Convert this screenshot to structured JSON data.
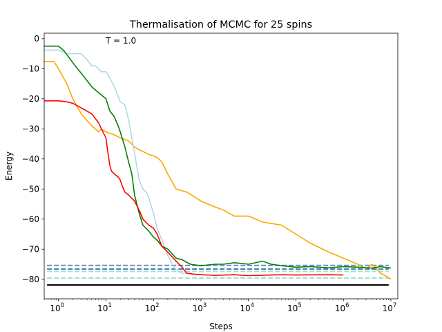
{
  "chart_data": {
    "type": "line",
    "title": "Thermalisation of MCMC for 25 spins",
    "xlabel": "Steps",
    "ylabel": "Energy",
    "annotation": "T = 1.0",
    "xscale": "log",
    "xlim": [
      0.5,
      14000000
    ],
    "ylim": [
      -86.5,
      1.8
    ],
    "x_ticks": [
      {
        "value": 1,
        "label": "10",
        "exp": "0"
      },
      {
        "value": 10,
        "label": "10",
        "exp": "1"
      },
      {
        "value": 100,
        "label": "10",
        "exp": "2"
      },
      {
        "value": 1000,
        "label": "10",
        "exp": "3"
      },
      {
        "value": 10000,
        "label": "10",
        "exp": "4"
      },
      {
        "value": 100000,
        "label": "10",
        "exp": "5"
      },
      {
        "value": 1000000,
        "label": "10",
        "exp": "6"
      },
      {
        "value": 10000000,
        "label": "10",
        "exp": "7"
      }
    ],
    "y_ticks": [
      {
        "value": 0,
        "label": "0"
      },
      {
        "value": -10,
        "label": "−10"
      },
      {
        "value": -20,
        "label": "−20"
      },
      {
        "value": -30,
        "label": "−30"
      },
      {
        "value": -40,
        "label": "−40"
      },
      {
        "value": -50,
        "label": "−50"
      },
      {
        "value": -60,
        "label": "−60"
      },
      {
        "value": -70,
        "label": "−70"
      },
      {
        "value": -80,
        "label": "−80"
      }
    ],
    "series": [
      {
        "name": "orange",
        "color": "#ffa500",
        "points": [
          [
            0.5,
            -7.6
          ],
          [
            0.8,
            -7.6
          ],
          [
            1.0,
            -10
          ],
          [
            1.5,
            -15
          ],
          [
            2,
            -20
          ],
          [
            3,
            -25
          ],
          [
            5,
            -29
          ],
          [
            7,
            -31
          ],
          [
            8,
            -30
          ],
          [
            10,
            -31
          ],
          [
            15,
            -32
          ],
          [
            20,
            -33
          ],
          [
            30,
            -34
          ],
          [
            40,
            -36
          ],
          [
            50,
            -37
          ],
          [
            60,
            -37.5
          ],
          [
            80,
            -38.5
          ],
          [
            100,
            -39
          ],
          [
            120,
            -39.5
          ],
          [
            150,
            -41
          ],
          [
            200,
            -45
          ],
          [
            300,
            -50
          ],
          [
            500,
            -51
          ],
          [
            1000,
            -54
          ],
          [
            2000,
            -56
          ],
          [
            3000,
            -57
          ],
          [
            5000,
            -59
          ],
          [
            10000,
            -59
          ],
          [
            20000,
            -61
          ],
          [
            50000,
            -62
          ],
          [
            100000,
            -65
          ],
          [
            200000,
            -68
          ],
          [
            500000,
            -71
          ],
          [
            1000000,
            -73
          ],
          [
            2000000,
            -75
          ],
          [
            3000000,
            -76.5
          ],
          [
            4000000,
            -75
          ],
          [
            5000000,
            -76.5
          ],
          [
            6000000,
            -78
          ],
          [
            8000000,
            -79
          ],
          [
            10000000,
            -80
          ]
        ]
      },
      {
        "name": "lightblue",
        "color": "#add8e6",
        "points": [
          [
            0.5,
            -3.8
          ],
          [
            1,
            -3.8
          ],
          [
            1.5,
            -5
          ],
          [
            2,
            -5
          ],
          [
            3,
            -5
          ],
          [
            4,
            -7
          ],
          [
            5,
            -9
          ],
          [
            6,
            -9
          ],
          [
            8,
            -11
          ],
          [
            10,
            -11
          ],
          [
            12,
            -13
          ],
          [
            15,
            -16
          ],
          [
            20,
            -21
          ],
          [
            25,
            -22
          ],
          [
            30,
            -27
          ],
          [
            35,
            -33
          ],
          [
            40,
            -38
          ],
          [
            45,
            -43
          ],
          [
            50,
            -47
          ],
          [
            60,
            -50
          ],
          [
            70,
            -51
          ],
          [
            80,
            -53
          ],
          [
            100,
            -58
          ],
          [
            120,
            -63
          ],
          [
            150,
            -67
          ],
          [
            200,
            -72
          ],
          [
            250,
            -75
          ],
          [
            300,
            -77
          ],
          [
            400,
            -78
          ],
          [
            500,
            -78
          ]
        ]
      },
      {
        "name": "green",
        "color": "#008000",
        "points": [
          [
            0.5,
            -2.5
          ],
          [
            1,
            -2.5
          ],
          [
            1.3,
            -4
          ],
          [
            1.8,
            -7
          ],
          [
            2.5,
            -10
          ],
          [
            3,
            -11.5
          ],
          [
            4,
            -14
          ],
          [
            5,
            -16
          ],
          [
            7,
            -18
          ],
          [
            10,
            -20
          ],
          [
            12,
            -24
          ],
          [
            15,
            -26
          ],
          [
            18,
            -29
          ],
          [
            20,
            -31
          ],
          [
            25,
            -36
          ],
          [
            30,
            -41
          ],
          [
            35,
            -45
          ],
          [
            40,
            -52
          ],
          [
            50,
            -58
          ],
          [
            60,
            -62
          ],
          [
            80,
            -64
          ],
          [
            100,
            -66
          ],
          [
            120,
            -67
          ],
          [
            150,
            -69
          ],
          [
            200,
            -70
          ],
          [
            300,
            -73
          ],
          [
            400,
            -73.5
          ],
          [
            600,
            -75
          ],
          [
            1000,
            -75.5
          ],
          [
            2000,
            -75
          ],
          [
            3000,
            -75
          ],
          [
            5000,
            -74.5
          ],
          [
            10000,
            -75
          ],
          [
            20000,
            -74
          ],
          [
            30000,
            -75
          ],
          [
            50000,
            -75.5
          ],
          [
            100000,
            -76
          ],
          [
            200000,
            -75.8
          ],
          [
            500000,
            -76.2
          ],
          [
            1000000,
            -75.8
          ],
          [
            2000000,
            -76
          ],
          [
            4000000,
            -76.3
          ],
          [
            6000000,
            -75.8
          ],
          [
            10000000,
            -76.3
          ]
        ]
      },
      {
        "name": "red",
        "color": "#ff0000",
        "points": [
          [
            0.5,
            -20.7
          ],
          [
            1,
            -20.7
          ],
          [
            1.5,
            -21
          ],
          [
            2,
            -21.5
          ],
          [
            3,
            -23
          ],
          [
            5,
            -25
          ],
          [
            7,
            -28
          ],
          [
            8,
            -30
          ],
          [
            10,
            -33
          ],
          [
            11,
            -38
          ],
          [
            12,
            -42
          ],
          [
            13,
            -44
          ],
          [
            15,
            -45
          ],
          [
            18,
            -46
          ],
          [
            20,
            -47
          ],
          [
            22,
            -49
          ],
          [
            25,
            -51
          ],
          [
            30,
            -52
          ],
          [
            40,
            -54
          ],
          [
            50,
            -57
          ],
          [
            60,
            -60
          ],
          [
            80,
            -62
          ],
          [
            100,
            -63
          ],
          [
            120,
            -65
          ],
          [
            150,
            -69
          ],
          [
            200,
            -71
          ],
          [
            300,
            -74
          ],
          [
            400,
            -76
          ],
          [
            500,
            -78
          ],
          [
            700,
            -78.3
          ],
          [
            1000,
            -78.5
          ],
          [
            2000,
            -78.7
          ],
          [
            5000,
            -78.5
          ],
          [
            10000,
            -78.8
          ],
          [
            50000,
            -78.5
          ],
          [
            100000,
            -78.6
          ],
          [
            500000,
            -78.5
          ],
          [
            1000000,
            -78.6
          ]
        ]
      }
    ],
    "hlines": [
      {
        "value": -75.4,
        "color": "#6f8fc0",
        "style": "dashed"
      },
      {
        "value": -76.6,
        "color": "#4a7db5",
        "style": "dashed"
      },
      {
        "value": -77.4,
        "color": "#9ee2d0",
        "style": "dashed"
      },
      {
        "value": -79.6,
        "color": "#9ee2d0",
        "style": "dashed"
      },
      {
        "value": -81.9,
        "color": "#000000",
        "style": "solid"
      }
    ]
  }
}
